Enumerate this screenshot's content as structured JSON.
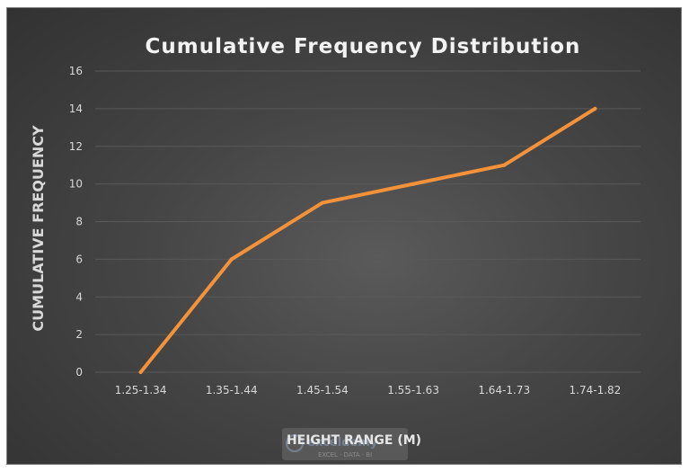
{
  "chart_data": {
    "type": "line",
    "title": "Cumulative Frequency Distribution",
    "xlabel": "HEIGHT RANGE (M)",
    "ylabel": "CUMULATIVE FREQUENCY",
    "categories": [
      "1.25-1.34",
      "1.35-1.44",
      "1.45-1.54",
      "1.55-1.63",
      "1.64-1.73",
      "1.74-1.82"
    ],
    "series": [
      {
        "values": [
          0,
          6,
          9,
          10,
          11,
          14
        ],
        "color": "#f4923a"
      }
    ],
    "ylim": [
      0,
      16
    ],
    "yticks": [
      0,
      2,
      4,
      6,
      8,
      10,
      12,
      14,
      16
    ],
    "grid": true,
    "legend": "none"
  },
  "colors": {
    "background": "#404040",
    "text": "#d9d9d9",
    "title": "#f2f2f2",
    "grid": "#595959"
  },
  "watermark": {
    "name": "exceldemy",
    "tagline": "EXCEL · DATA · BI"
  }
}
